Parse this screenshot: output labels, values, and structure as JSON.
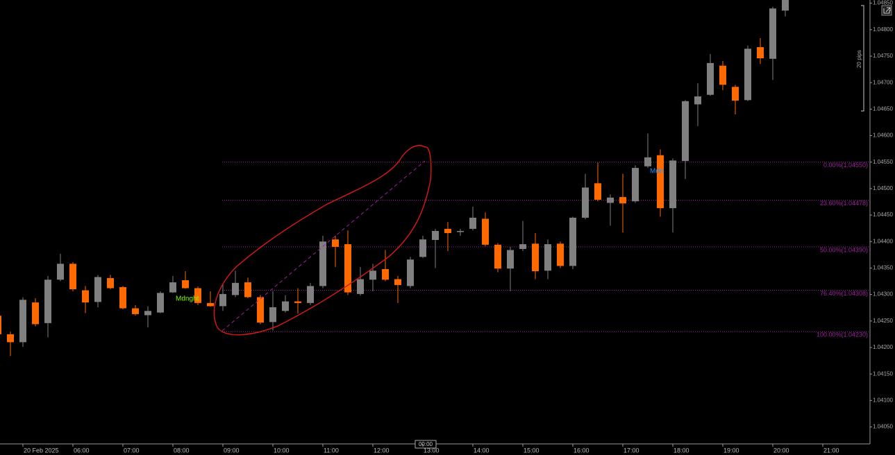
{
  "chart_data": {
    "type": "candlestick",
    "categories": [
      null,
      null,
      "20 Feb 2025",
      null,
      null,
      null,
      "06:00",
      null,
      null,
      null,
      "07:00",
      null,
      null,
      null,
      "08:00",
      null,
      null,
      null,
      "09:00",
      null,
      null,
      null,
      "10:00",
      null,
      null,
      null,
      "11:00",
      null,
      null,
      null,
      "12:00",
      null,
      null,
      null,
      "13:00",
      null,
      null,
      null,
      "14:00",
      null,
      null,
      null,
      "15:00",
      null,
      null,
      null,
      "16:00",
      null,
      null,
      null,
      "17:00",
      null,
      null,
      null,
      "18:00",
      null,
      null,
      null,
      "19:00",
      null,
      null,
      null,
      "20:00",
      null,
      null,
      null,
      "21:00"
    ],
    "open": [
      1.0426,
      1.04225,
      1.0421,
      1.04285,
      1.04246,
      1.04328,
      1.04358,
      1.04308,
      1.04286,
      1.04331,
      1.04314,
      1.04274,
      1.04261,
      1.04266,
      1.04304,
      1.04327,
      1.04312,
      1.04284,
      1.04278,
      1.04299,
      1.04323,
      1.04295,
      1.04248,
      1.04269,
      1.04287,
      1.04284,
      1.04316,
      1.04404,
      1.04395,
      1.04301,
      1.04328,
      1.04348,
      1.04329,
      1.04316,
      1.04371,
      1.04403,
      1.04424,
      1.04418,
      1.04424,
      1.04443,
      1.04394,
      1.04349,
      1.04386,
      1.04396,
      1.04345,
      1.04396,
      1.04354,
      1.04445,
      1.0451,
      1.04473,
      1.04484,
      1.04476,
      1.04542,
      1.04563,
      1.04463,
      1.04552,
      1.04659,
      1.04677,
      1.04732,
      1.04692,
      1.04667,
      1.04767,
      1.04745,
      1.04836,
      null,
      null,
      null
    ],
    "high": [
      1.04266,
      1.0423,
      1.04295,
      1.04293,
      1.04335,
      1.04377,
      1.04361,
      1.04316,
      1.04337,
      1.04337,
      1.04316,
      1.0428,
      1.04278,
      1.04306,
      1.04335,
      1.04344,
      1.04315,
      1.04306,
      1.04319,
      1.04345,
      1.04332,
      1.04299,
      1.04306,
      1.04299,
      1.04312,
      1.04322,
      1.04411,
      1.04411,
      1.04421,
      1.04352,
      1.04358,
      1.04384,
      1.04335,
      1.04371,
      1.04411,
      1.04424,
      1.04437,
      1.04424,
      1.04466,
      1.04455,
      1.04397,
      1.0439,
      1.04439,
      1.04416,
      1.04404,
      1.044,
      1.04447,
      1.04528,
      1.04549,
      1.04489,
      1.04528,
      1.04544,
      1.04604,
      1.04574,
      1.04557,
      1.04667,
      1.04699,
      1.04754,
      1.04741,
      1.04696,
      1.0477,
      1.04784,
      1.04843,
      1.04856,
      null,
      null,
      null
    ],
    "low": [
      1.04221,
      1.04184,
      1.04201,
      1.0424,
      1.04219,
      1.04325,
      1.04306,
      1.04265,
      1.04276,
      1.0431,
      1.04272,
      1.0426,
      1.04238,
      1.04265,
      1.04303,
      1.04311,
      1.0428,
      1.04277,
      1.04269,
      1.04295,
      1.04293,
      1.04244,
      1.04232,
      1.04266,
      1.04264,
      1.0428,
      1.04312,
      1.04352,
      1.04299,
      1.04298,
      1.04306,
      1.04325,
      1.04284,
      1.04312,
      1.04369,
      1.0435,
      1.04382,
      1.04411,
      1.04421,
      1.04391,
      1.04342,
      1.04306,
      1.04382,
      1.04329,
      1.04329,
      1.0435,
      1.04348,
      1.04442,
      1.04476,
      1.0443,
      1.04417,
      1.04473,
      1.04539,
      1.04447,
      1.04417,
      1.04518,
      1.04618,
      1.04675,
      1.04686,
      1.0464,
      1.04665,
      1.04735,
      1.04705,
      1.04825,
      null,
      null,
      null
    ],
    "close": [
      1.04225,
      1.0421,
      1.0429,
      1.04244,
      1.04328,
      1.04358,
      1.0431,
      1.04285,
      1.04333,
      1.04312,
      1.04274,
      1.04263,
      1.04269,
      1.04303,
      1.04323,
      1.04312,
      1.04284,
      1.04278,
      1.04301,
      1.04322,
      1.04295,
      1.04247,
      1.04276,
      1.04287,
      1.04284,
      1.04316,
      1.044,
      1.0439,
      1.04304,
      1.04329,
      1.04345,
      1.04328,
      1.04318,
      1.04366,
      1.04404,
      1.0442,
      1.04416,
      1.0442,
      1.04445,
      1.04394,
      1.04349,
      1.04384,
      1.04395,
      1.04344,
      1.04395,
      1.04354,
      1.04445,
      1.04502,
      1.04479,
      1.04483,
      1.04472,
      1.04539,
      1.04559,
      1.04463,
      1.04553,
      1.04665,
      1.04674,
      1.04737,
      1.04696,
      1.04666,
      1.04764,
      1.04746,
      1.0484,
      1.04856,
      null,
      null,
      null
    ],
    "up_color": "#808080",
    "down_color": "#ff6a00",
    "ylim": [
      1.04018,
      1.04856
    ],
    "yticks": [
      {
        "value": 1.0405,
        "label": "1.04050"
      },
      {
        "value": 1.041,
        "label": "1.04100"
      },
      {
        "value": 1.0415,
        "label": "1.04150"
      },
      {
        "value": 1.042,
        "label": "1.04200"
      },
      {
        "value": 1.0425,
        "label": "1.04250"
      },
      {
        "value": 1.043,
        "label": "1.04300"
      },
      {
        "value": 1.0435,
        "label": "1.04350"
      },
      {
        "value": 1.044,
        "label": "1.04400"
      },
      {
        "value": 1.0445,
        "label": "1.04450"
      },
      {
        "value": 1.045,
        "label": "1.04500"
      },
      {
        "value": 1.0455,
        "label": "1.04550"
      },
      {
        "value": 1.046,
        "label": "1.04600"
      },
      {
        "value": 1.0465,
        "label": "1.04650"
      },
      {
        "value": 1.047,
        "label": "1.04700"
      },
      {
        "value": 1.0475,
        "label": "1.04750"
      },
      {
        "value": 1.048,
        "label": "1.04800"
      },
      {
        "value": 1.0485,
        "label": "1.04850"
      }
    ],
    "fib_levels": [
      {
        "value": 1.0455,
        "label": "0.00%(1.04550)"
      },
      {
        "value": 1.04478,
        "label": "23.60%(1.04478)"
      },
      {
        "value": 1.0439,
        "label": "50.00%(1.04390)"
      },
      {
        "value": 1.04308,
        "label": "76.40%(1.04308)"
      },
      {
        "value": 1.0423,
        "label": "100.00%(1.04230)"
      }
    ],
    "fib_color": "#a020a0",
    "annotations": {
      "midnight": "Mdnght",
      "midnight2": "Mdn",
      "pips": "20 pips",
      "cursor_time": "00:00"
    }
  }
}
